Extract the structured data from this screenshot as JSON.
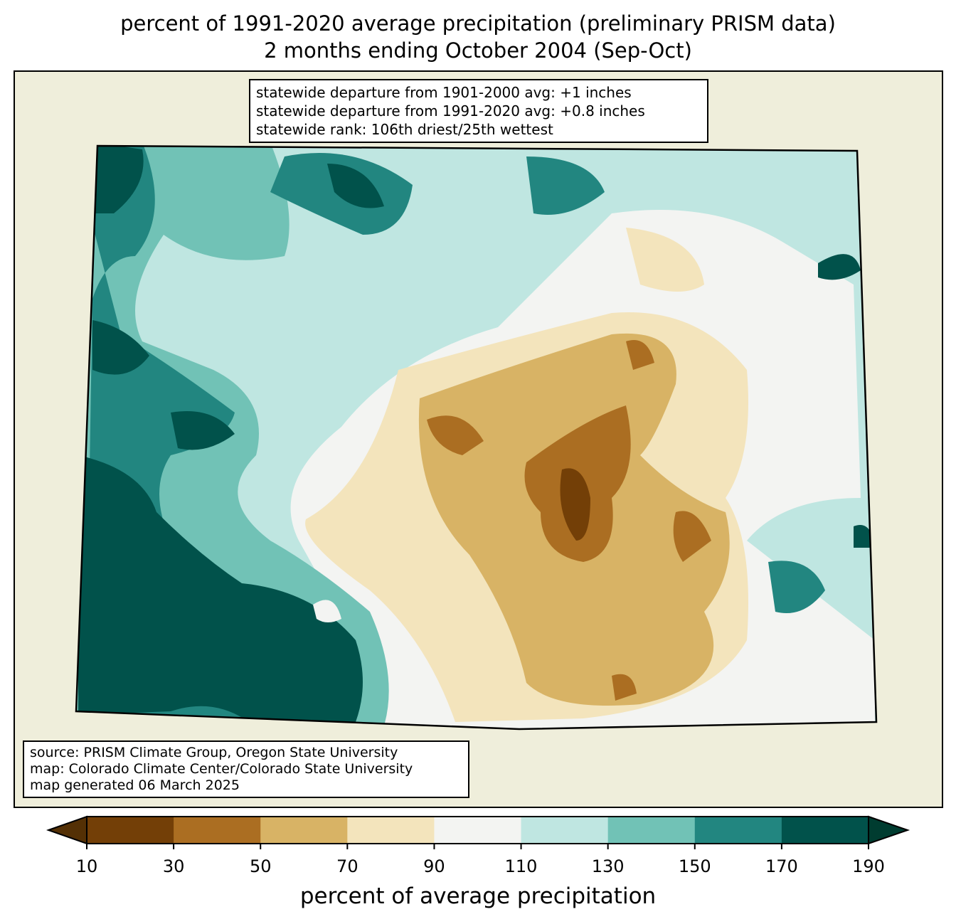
{
  "title": {
    "line1": "percent of 1991-2020 average precipitation (preliminary PRISM data)",
    "line2": "2 months ending October 2004 (Sep-Oct)"
  },
  "stats": {
    "line1": "statewide departure from 1901-2000 avg: +1 inches",
    "line2": "statewide departure from 1991-2020 avg: +0.8 inches",
    "line3": "statewide rank: 106th driest/25th wettest"
  },
  "credits": {
    "line1": "source: PRISM Climate Group, Oregon State University",
    "line2": "map: Colorado Climate Center/Colorado State University",
    "line3": "map generated 06 March 2025"
  },
  "colorbar": {
    "label": "percent of average precipitation",
    "ticks": [
      "10",
      "30",
      "50",
      "70",
      "90",
      "110",
      "130",
      "150",
      "170",
      "190"
    ],
    "colors": [
      "#733f07",
      "#ab6e22",
      "#d8b365",
      "#f3e4bc",
      "#f3f4f2",
      "#bfe6e1",
      "#71c2b6",
      "#228680",
      "#01524b"
    ],
    "under_color": "#543005",
    "over_color": "#003c30"
  }
}
